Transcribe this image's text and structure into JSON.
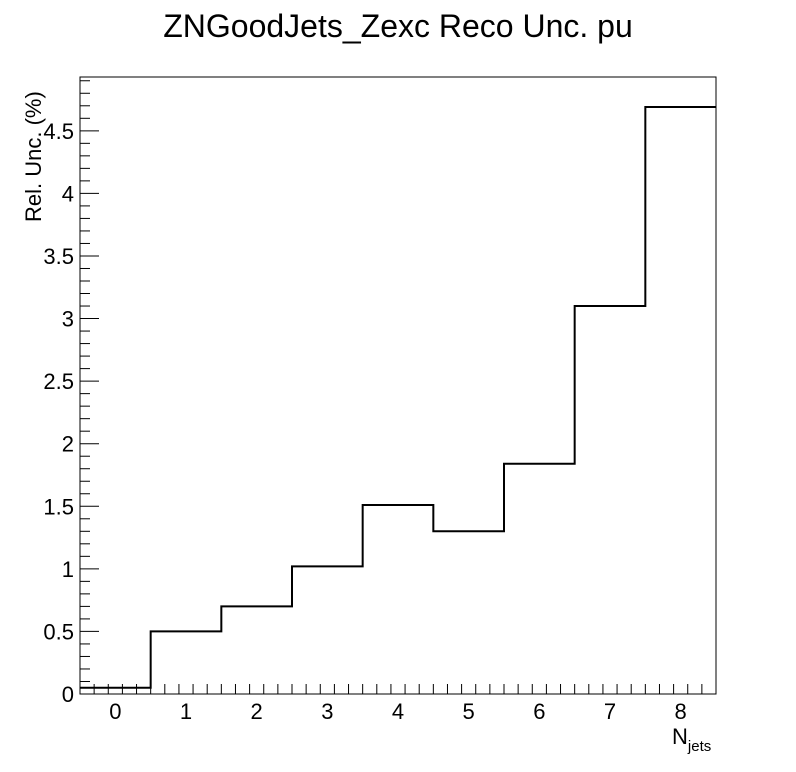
{
  "chart_data": {
    "type": "histogram",
    "title": "ZNGoodJets_Zexc Reco Unc. pu",
    "xlabel_main": "N",
    "xlabel_sub": "jets",
    "ylabel": "Rel. Unc. (%)",
    "xlim": [
      -0.5,
      8.5
    ],
    "ylim": [
      0,
      4.93
    ],
    "bin_edges": [
      -0.5,
      0.5,
      1.5,
      2.5,
      3.5,
      4.5,
      5.5,
      6.5,
      7.5,
      8.5
    ],
    "values": [
      0.05,
      0.5,
      0.7,
      1.02,
      1.51,
      1.3,
      1.84,
      3.1,
      4.69
    ],
    "x_ticks": [
      {
        "value": 0,
        "label": "0"
      },
      {
        "value": 1,
        "label": "1"
      },
      {
        "value": 2,
        "label": "2"
      },
      {
        "value": 3,
        "label": "3"
      },
      {
        "value": 4,
        "label": "4"
      },
      {
        "value": 5,
        "label": "5"
      },
      {
        "value": 6,
        "label": "6"
      },
      {
        "value": 7,
        "label": "7"
      },
      {
        "value": 8,
        "label": "8"
      }
    ],
    "y_ticks": [
      {
        "value": 0,
        "label": "0"
      },
      {
        "value": 0.5,
        "label": "0.5"
      },
      {
        "value": 1,
        "label": "1"
      },
      {
        "value": 1.5,
        "label": "1.5"
      },
      {
        "value": 2,
        "label": "2"
      },
      {
        "value": 2.5,
        "label": "2.5"
      },
      {
        "value": 3,
        "label": "3"
      },
      {
        "value": 3.5,
        "label": "3.5"
      },
      {
        "value": 4,
        "label": "4"
      },
      {
        "value": 4.5,
        "label": "4.5"
      }
    ],
    "grid": false,
    "line_color": "#000000"
  }
}
